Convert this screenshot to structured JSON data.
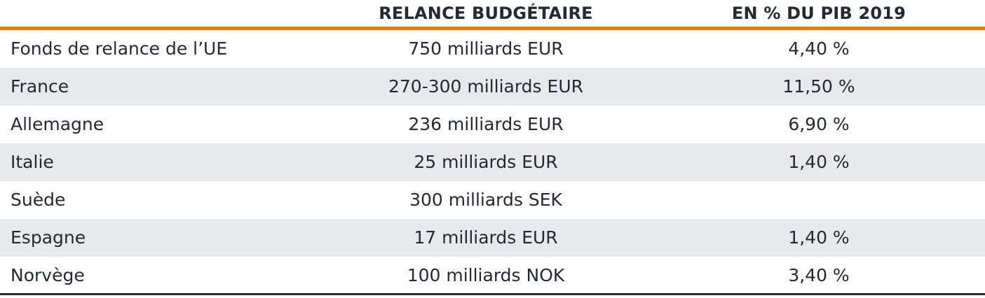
{
  "table": {
    "columns": [
      "",
      "RELANCE BUDGÉTAIRE",
      "EN % DU PIB 2019"
    ],
    "rows": [
      {
        "label": "Fonds de relance de l’UE",
        "relance": "750 milliards EUR",
        "pct_pib": "4,40 %"
      },
      {
        "label": "France",
        "relance": "270-300 milliards EUR",
        "pct_pib": "11,50 %"
      },
      {
        "label": "Allemagne",
        "relance": "236 milliards EUR",
        "pct_pib": "6,90 %"
      },
      {
        "label": "Italie",
        "relance": "25 milliards EUR",
        "pct_pib": "1,40 %"
      },
      {
        "label": "Suède",
        "relance": "300 milliards SEK",
        "pct_pib": ""
      },
      {
        "label": "Espagne",
        "relance": "17 milliards EUR",
        "pct_pib": "1,40 %"
      },
      {
        "label": "Norvège",
        "relance": "100 milliards NOK",
        "pct_pib": "3,40 %"
      }
    ]
  },
  "colors": {
    "header_rule": "#e07b24",
    "alt_row": "#e8e9eb",
    "text": "#232a35",
    "bottom_rule": "#2b2b2b"
  }
}
